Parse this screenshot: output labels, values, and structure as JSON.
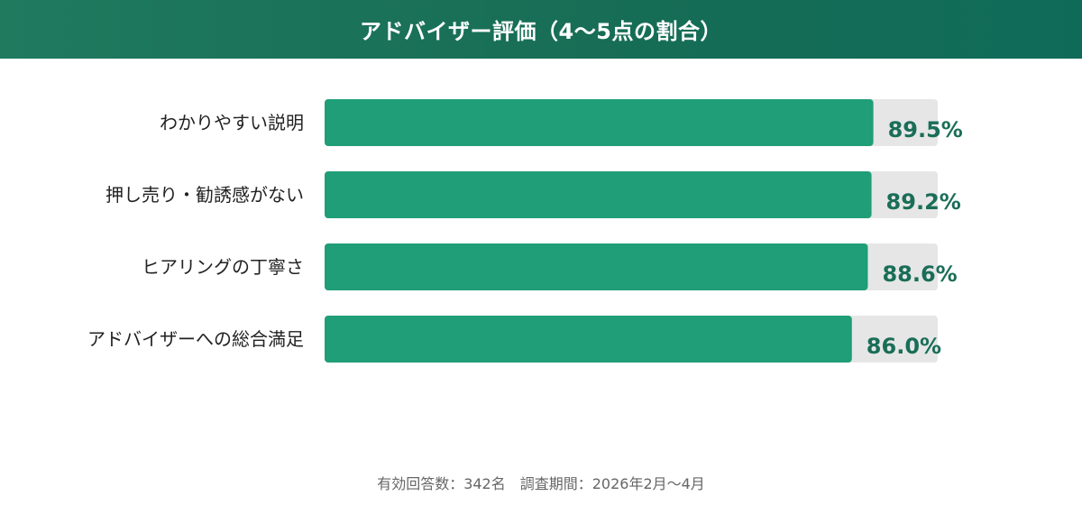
{
  "header": {
    "title": "アドバイザー評価（4〜5点の割合）"
  },
  "chart_data": {
    "type": "bar",
    "orientation": "horizontal",
    "categories": [
      "わかりやすい説明",
      "押し売り・勧誘感がない",
      "ヒアリングの丁寧さ",
      "アドバイザーへの総合満足"
    ],
    "values": [
      89.5,
      89.2,
      88.6,
      86.0
    ],
    "value_labels": [
      "89.5%",
      "89.2%",
      "88.6%",
      "86.0%"
    ],
    "xlim": [
      0,
      100
    ],
    "grid": false,
    "legend": "none",
    "colors": {
      "bar": "#1f9e77",
      "track": "#e6e6e6",
      "value_label": "#1a6e57",
      "category_label": "#222222"
    }
  },
  "footer": {
    "note": "有効回答数：342名　調査期間：2026年2月〜4月"
  }
}
